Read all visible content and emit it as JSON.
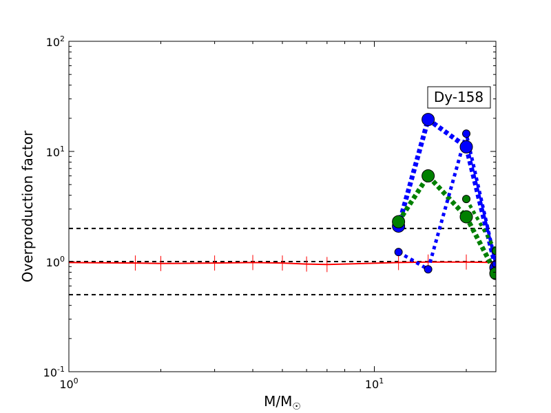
{
  "chart_data": {
    "type": "line",
    "title": "",
    "annotation": "Dy-158",
    "xlabel": "M/M☉",
    "ylabel": "Overproduction factor",
    "xscale": "log",
    "yscale": "log",
    "xlim": [
      1,
      25
    ],
    "ylim": [
      0.1,
      100
    ],
    "x_ticks": [
      {
        "base": "10",
        "exp": "0",
        "value": 1
      },
      {
        "base": "10",
        "exp": "1",
        "value": 10
      }
    ],
    "y_ticks": [
      {
        "base": "10",
        "exp": "-1",
        "value": 0.1
      },
      {
        "base": "10",
        "exp": "0",
        "value": 1
      },
      {
        "base": "10",
        "exp": "1",
        "value": 10
      },
      {
        "base": "10",
        "exp": "2",
        "value": 100
      }
    ],
    "hlines": [
      0.5,
      1.0,
      2.0
    ],
    "red_line": {
      "color": "#ff0000",
      "x": [
        1,
        1.65,
        2,
        3,
        4,
        5,
        6,
        7,
        12,
        15,
        20,
        25
      ],
      "y": [
        0.98,
        0.97,
        0.96,
        0.97,
        0.98,
        0.97,
        0.95,
        0.94,
        0.98,
        0.99,
        0.99,
        0.98
      ]
    },
    "series": [
      {
        "color": "#0000ff",
        "style": "thick",
        "marker": "large",
        "x": [
          12,
          15,
          20,
          25
        ],
        "y": [
          2.1,
          19.5,
          11.0,
          0.88
        ]
      },
      {
        "color": "#008000",
        "style": "thick",
        "marker": "large",
        "x": [
          12,
          15,
          20,
          25
        ],
        "y": [
          2.3,
          6.0,
          2.55,
          0.78
        ]
      },
      {
        "color": "#0000ff",
        "style": "thin",
        "marker": "small",
        "x": [
          12,
          15,
          20,
          25
        ],
        "y": [
          1.22,
          0.85,
          14.5,
          0.95
        ]
      },
      {
        "color": "#008000",
        "style": "thin",
        "marker": "small",
        "x": [
          20,
          25
        ],
        "y": [
          3.7,
          1.25
        ]
      }
    ]
  }
}
